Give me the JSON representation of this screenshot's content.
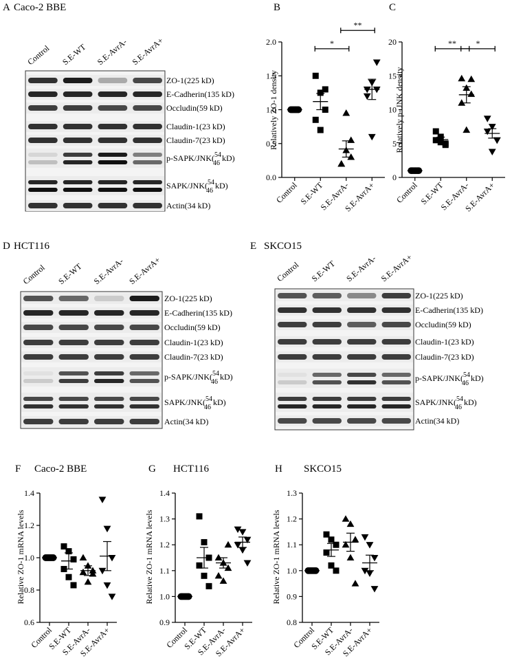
{
  "panel_letters": {
    "A": "A",
    "B": "B",
    "C": "C",
    "D": "D",
    "E": "E",
    "F": "F",
    "G": "G",
    "H": "H"
  },
  "panels": {
    "A": {
      "title": "Caco-2 BBE"
    },
    "D": {
      "title": "HCT116"
    },
    "E": {
      "title": "SKCO15"
    },
    "F": {
      "title": "Caco-2 BBE"
    },
    "G": {
      "title": "HCT116"
    },
    "H": {
      "title": "SKCO15"
    }
  },
  "western_blot": {
    "lanes": [
      "Control",
      "S.E-WT",
      "S.E-AvrA-",
      "S.E-AvrA+"
    ],
    "rows": [
      {
        "label": "ZO-1(225 kD)"
      },
      {
        "label": "E-Cadherin(135 kD)"
      },
      {
        "label": "Occludin(59 kD)"
      },
      {
        "label": "Claudin-1(23 kD)"
      },
      {
        "label": "Claudin-7(23 kD)"
      },
      {
        "label": "p-SAPK/JNK(",
        "sup": "54",
        "sub": "46",
        "suffix": "kD)"
      },
      {
        "label": "SAPK/JNK(",
        "sup": "54",
        "sub": "46",
        "suffix": "kD)"
      },
      {
        "label": "Actin(34 kD)"
      }
    ]
  },
  "chart_data": [
    {
      "id": "B",
      "type": "scatter",
      "ylabel": "Relatively ZO-1 density",
      "ylim": [
        0,
        2.0
      ],
      "yticks": [
        "0.0",
        "0.5",
        "1.0",
        "1.5",
        "2.0"
      ],
      "categories": [
        "Control",
        "S.E-WT",
        "S.E-AvrA-",
        "S.E-AvrA+"
      ],
      "markers": [
        "circle",
        "square",
        "triangle-up",
        "triangle-down"
      ],
      "points": [
        [
          1.0,
          1.0,
          1.0,
          1.0,
          1.0,
          1.0
        ],
        [
          1.5,
          1.25,
          1.0,
          0.85,
          0.7,
          1.3
        ],
        [
          0.2,
          0.4,
          0.55,
          0.2,
          0.95,
          0.3
        ],
        [
          1.3,
          1.4,
          1.7,
          1.2,
          0.6,
          1.3
        ]
      ],
      "means": [
        1.0,
        1.12,
        0.42,
        1.3
      ],
      "sems": [
        0.0,
        0.12,
        0.12,
        0.15
      ],
      "significance": [
        {
          "from": 1,
          "to": 2,
          "label": "*",
          "y": 1.9
        },
        {
          "from": 2,
          "to": 3,
          "label": "**",
          "y": 2.17
        }
      ]
    },
    {
      "id": "C",
      "type": "scatter",
      "ylabel": "Relatively p- JNK density",
      "ylim": [
        0,
        20
      ],
      "yticks": [
        "0",
        "5",
        "10",
        "15",
        "20"
      ],
      "categories": [
        "Control",
        "S.E-WT",
        "S.E-AvrA-",
        "S.E-AvrA+"
      ],
      "markers": [
        "circle",
        "square",
        "triangle-up",
        "triangle-down"
      ],
      "points": [
        [
          1,
          1,
          1,
          1,
          1,
          1
        ],
        [
          6.8,
          5.2,
          4.8,
          5.5,
          6.0,
          5.0
        ],
        [
          14.6,
          13.2,
          12.3,
          11.0,
          7.0,
          14.5
        ],
        [
          8.7,
          7.5,
          5.5,
          6.8,
          3.8,
          5.5
        ]
      ],
      "means": [
        1.0,
        5.6,
        12.2,
        6.5
      ],
      "sems": [
        0.0,
        0.35,
        1.2,
        0.7
      ],
      "significance": [
        {
          "from": 1,
          "to": 2,
          "label": "**",
          "y": 19.0
        },
        {
          "from": 2,
          "to": 3,
          "label": "*",
          "y": 19.0
        }
      ]
    },
    {
      "id": "F",
      "type": "scatter",
      "ylabel": "Relative ZO-1 mRNA levels",
      "ylim": [
        0.6,
        1.4
      ],
      "yticks": [
        "0.6",
        "0.8",
        "1.0",
        "1.2",
        "1.4"
      ],
      "categories": [
        "Control",
        "S.E-WT",
        "S.E-AvrA-",
        "S.E-AvrA+"
      ],
      "markers": [
        "circle",
        "square",
        "triangle-up",
        "triangle-down"
      ],
      "points": [
        [
          1,
          1,
          1,
          1,
          1,
          1
        ],
        [
          1.07,
          1.04,
          0.99,
          0.93,
          0.88,
          0.83
        ],
        [
          1.0,
          0.95,
          0.92,
          0.91,
          0.85,
          0.9
        ],
        [
          1.36,
          1.18,
          1.0,
          0.92,
          0.83,
          0.76
        ]
      ],
      "means": [
        1.0,
        0.98,
        0.92,
        1.01
      ],
      "sems": [
        0.0,
        0.05,
        0.03,
        0.09
      ],
      "significance": []
    },
    {
      "id": "G",
      "type": "scatter",
      "ylabel": "Relative ZO-1 mRNA levels",
      "ylim": [
        0.9,
        1.4
      ],
      "yticks": [
        "0.9",
        "1.0",
        "1.1",
        "1.2",
        "1.3",
        "1.4"
      ],
      "categories": [
        "Control",
        "S.E-WT",
        "S.E-AvrA-",
        "S.E-AvrA+"
      ],
      "markers": [
        "circle",
        "square",
        "triangle-up",
        "triangle-down"
      ],
      "points": [
        [
          1,
          1,
          1,
          1,
          1,
          1
        ],
        [
          1.31,
          1.21,
          1.15,
          1.12,
          1.08,
          1.04
        ],
        [
          1.15,
          1.13,
          1.11,
          1.08,
          1.06,
          1.2
        ],
        [
          1.26,
          1.25,
          1.22,
          1.2,
          1.18,
          1.13
        ]
      ],
      "means": [
        1.0,
        1.15,
        1.13,
        1.21
      ],
      "sems": [
        0.0,
        0.04,
        0.02,
        0.02
      ],
      "significance": []
    },
    {
      "id": "H",
      "type": "scatter",
      "ylabel": "Relative ZO-1 mRNA levels",
      "ylim": [
        0.8,
        1.3
      ],
      "yticks": [
        "0.8",
        "0.9",
        "1.0",
        "1.1",
        "1.2",
        "1.3"
      ],
      "categories": [
        "Control",
        "S.E-WT",
        "S.E-AvrA-",
        "S.E-AvrA+"
      ],
      "markers": [
        "circle",
        "square",
        "triangle-up",
        "triangle-down"
      ],
      "points": [
        [
          1,
          1,
          1,
          1,
          1,
          1
        ],
        [
          1.14,
          1.12,
          1.1,
          1.07,
          1.02,
          1.0
        ],
        [
          1.2,
          1.18,
          1.12,
          1.1,
          1.05,
          0.95
        ],
        [
          1.13,
          1.1,
          1.05,
          1.0,
          0.99,
          0.93
        ]
      ],
      "means": [
        1.0,
        1.08,
        1.11,
        1.03
      ],
      "sems": [
        0.0,
        0.025,
        0.035,
        0.03
      ],
      "significance": []
    }
  ]
}
